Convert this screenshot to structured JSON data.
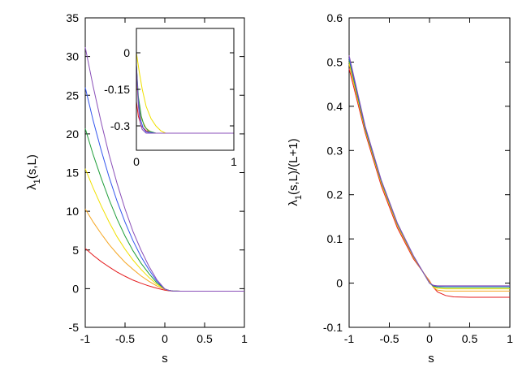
{
  "colors": {
    "red": "#e41a1c",
    "orange": "#f5a623",
    "yellow": "#f0e000",
    "green": "#1f9e3a",
    "blue": "#3355ee",
    "purple": "#8a4fb8"
  },
  "chart_data": [
    {
      "id": "left",
      "type": "line",
      "xlabel": "s",
      "ylabel_main": "λ",
      "ylabel_sub": "1",
      "ylabel_rest": "(s,L)",
      "xlim": [
        -1,
        1
      ],
      "ylim": [
        -5,
        35
      ],
      "xticks": [
        -1,
        -0.5,
        0,
        0.5,
        1
      ],
      "xtick_labels": [
        "-1",
        "-0.5",
        "0",
        "0.5",
        "1"
      ],
      "yticks": [
        -5,
        0,
        5,
        10,
        15,
        20,
        25,
        30,
        35
      ],
      "ytick_labels": [
        "-5",
        "0",
        "5",
        "10",
        "15",
        "20",
        "25",
        "30",
        "35"
      ],
      "series": [
        {
          "color": "red",
          "x": [
            -1,
            -0.9,
            -0.8,
            -0.7,
            -0.6,
            -0.5,
            -0.4,
            -0.3,
            -0.2,
            -0.1,
            0,
            0.05,
            0.1,
            0.2,
            0.4,
            0.6,
            0.8,
            1
          ],
          "y": [
            5.2,
            4.3,
            3.5,
            2.8,
            2.15,
            1.6,
            1.1,
            0.7,
            0.35,
            0.05,
            -0.2,
            -0.28,
            -0.31,
            -0.33,
            -0.33,
            -0.33,
            -0.33,
            -0.33
          ]
        },
        {
          "color": "orange",
          "x": [
            -1,
            -0.9,
            -0.8,
            -0.7,
            -0.6,
            -0.5,
            -0.4,
            -0.3,
            -0.2,
            -0.1,
            0,
            0.05,
            0.1,
            0.2,
            0.4,
            0.6,
            0.8,
            1
          ],
          "y": [
            10.3,
            8.6,
            7.1,
            5.7,
            4.5,
            3.4,
            2.5,
            1.65,
            0.95,
            0.35,
            -0.1,
            -0.24,
            -0.3,
            -0.33,
            -0.33,
            -0.33,
            -0.33,
            -0.33
          ]
        },
        {
          "color": "yellow",
          "x": [
            -1,
            -0.9,
            -0.8,
            -0.7,
            -0.6,
            -0.5,
            -0.4,
            -0.3,
            -0.2,
            -0.1,
            0,
            0.05,
            0.1,
            0.2,
            0.4,
            0.6,
            0.8,
            1
          ],
          "y": [
            15.5,
            13.0,
            10.7,
            8.6,
            6.7,
            5.1,
            3.7,
            2.5,
            1.45,
            0.55,
            -0.05,
            -0.22,
            -0.3,
            -0.33,
            -0.33,
            -0.33,
            -0.33,
            -0.33
          ]
        },
        {
          "color": "green",
          "x": [
            -1,
            -0.9,
            -0.8,
            -0.7,
            -0.6,
            -0.5,
            -0.4,
            -0.3,
            -0.2,
            -0.1,
            0,
            0.05,
            0.1,
            0.2,
            0.4,
            0.6,
            0.8,
            1
          ],
          "y": [
            20.7,
            17.3,
            14.3,
            11.5,
            9.0,
            6.8,
            4.9,
            3.3,
            1.95,
            0.75,
            -0.05,
            -0.22,
            -0.3,
            -0.33,
            -0.33,
            -0.33,
            -0.33,
            -0.33
          ]
        },
        {
          "color": "blue",
          "x": [
            -1,
            -0.9,
            -0.8,
            -0.7,
            -0.6,
            -0.5,
            -0.4,
            -0.3,
            -0.2,
            -0.1,
            0,
            0.05,
            0.1,
            0.2,
            0.4,
            0.6,
            0.8,
            1
          ],
          "y": [
            26.0,
            21.7,
            17.9,
            14.4,
            11.3,
            8.6,
            6.2,
            4.15,
            2.45,
            0.95,
            -0.05,
            -0.22,
            -0.3,
            -0.33,
            -0.33,
            -0.33,
            -0.33,
            -0.33
          ]
        },
        {
          "color": "purple",
          "x": [
            -1,
            -0.9,
            -0.8,
            -0.7,
            -0.6,
            -0.5,
            -0.4,
            -0.3,
            -0.2,
            -0.1,
            0,
            0.05,
            0.1,
            0.2,
            0.4,
            0.6,
            0.8,
            1
          ],
          "y": [
            31.2,
            26.1,
            21.5,
            17.3,
            13.6,
            10.3,
            7.4,
            5.0,
            2.9,
            1.15,
            -0.05,
            -0.22,
            -0.3,
            -0.33,
            -0.33,
            -0.33,
            -0.33,
            -0.33
          ]
        }
      ]
    },
    {
      "id": "inset",
      "type": "line",
      "xlabel": "",
      "xlim": [
        0,
        1
      ],
      "ylim": [
        -0.4,
        0.1
      ],
      "xticks": [
        0,
        1
      ],
      "xtick_labels": [
        "0",
        "1"
      ],
      "yticks": [
        0,
        -0.15,
        -0.3
      ],
      "ytick_labels": [
        "0",
        "-0.15",
        "-0.3"
      ],
      "series": [
        {
          "color": "red",
          "x": [
            0,
            0.02,
            0.05,
            0.1,
            0.15,
            0.2,
            0.3,
            0.5,
            1
          ],
          "y": [
            -0.2,
            -0.26,
            -0.3,
            -0.32,
            -0.33,
            -0.33,
            -0.33,
            -0.33,
            -0.33
          ]
        },
        {
          "color": "orange",
          "x": [
            0,
            0.02,
            0.05,
            0.1,
            0.15,
            0.2,
            0.3,
            0.5,
            1
          ],
          "y": [
            -0.1,
            -0.2,
            -0.27,
            -0.31,
            -0.325,
            -0.33,
            -0.33,
            -0.33,
            -0.33
          ]
        },
        {
          "color": "yellow",
          "x": [
            0,
            0.03,
            0.06,
            0.1,
            0.15,
            0.2,
            0.25,
            0.3,
            0.5,
            1
          ],
          "y": [
            0.0,
            -0.08,
            -0.15,
            -0.22,
            -0.27,
            -0.3,
            -0.32,
            -0.33,
            -0.33,
            -0.33
          ]
        },
        {
          "color": "green",
          "x": [
            0,
            0.02,
            0.05,
            0.08,
            0.12,
            0.2,
            0.3,
            0.5,
            1
          ],
          "y": [
            -0.05,
            -0.18,
            -0.26,
            -0.3,
            -0.32,
            -0.33,
            -0.33,
            -0.33,
            -0.33
          ]
        },
        {
          "color": "blue",
          "x": [
            0,
            0.02,
            0.04,
            0.07,
            0.1,
            0.2,
            0.3,
            0.5,
            1
          ],
          "y": [
            -0.05,
            -0.2,
            -0.27,
            -0.31,
            -0.325,
            -0.33,
            -0.33,
            -0.33,
            -0.33
          ]
        },
        {
          "color": "purple",
          "x": [
            0,
            0.02,
            0.04,
            0.06,
            0.1,
            0.2,
            0.3,
            0.5,
            1
          ],
          "y": [
            -0.05,
            -0.22,
            -0.29,
            -0.315,
            -0.33,
            -0.33,
            -0.33,
            -0.33,
            -0.33
          ]
        }
      ]
    },
    {
      "id": "right",
      "type": "line",
      "xlabel": "s",
      "ylabel_main": "λ",
      "ylabel_sub": "1",
      "ylabel_rest": "(s,L)/(L+1)",
      "xlim": [
        -1,
        1
      ],
      "ylim": [
        -0.1,
        0.6
      ],
      "xticks": [
        -1,
        -0.5,
        0,
        0.5,
        1
      ],
      "xtick_labels": [
        "-1",
        "-0.5",
        "0",
        "0.5",
        "1"
      ],
      "yticks": [
        -0.1,
        0,
        0.1,
        0.2,
        0.3,
        0.4,
        0.5,
        0.6
      ],
      "ytick_labels": [
        "-0.1",
        "0",
        "0.1",
        "0.2",
        "0.3",
        "0.4",
        "0.5",
        "0.6"
      ],
      "series": [
        {
          "color": "red",
          "x": [
            -1,
            -0.8,
            -0.6,
            -0.4,
            -0.2,
            0,
            0.05,
            0.1,
            0.2,
            0.3,
            0.5,
            1
          ],
          "y": [
            0.485,
            0.34,
            0.22,
            0.125,
            0.055,
            0.005,
            -0.01,
            -0.02,
            -0.028,
            -0.031,
            -0.032,
            -0.032
          ]
        },
        {
          "color": "orange",
          "x": [
            -1,
            -0.8,
            -0.6,
            -0.4,
            -0.2,
            0,
            0.05,
            0.1,
            0.2,
            0.3,
            0.5,
            1
          ],
          "y": [
            0.495,
            0.345,
            0.225,
            0.13,
            0.058,
            0.003,
            -0.01,
            -0.016,
            -0.018,
            -0.018,
            -0.018,
            -0.018
          ]
        },
        {
          "color": "yellow",
          "x": [
            -1,
            -0.8,
            -0.6,
            -0.4,
            -0.2,
            0,
            0.05,
            0.1,
            0.2,
            0.3,
            0.5,
            1
          ],
          "y": [
            0.5,
            0.348,
            0.228,
            0.132,
            0.06,
            0.002,
            -0.008,
            -0.012,
            -0.013,
            -0.013,
            -0.013,
            -0.013
          ]
        },
        {
          "color": "green",
          "x": [
            -1,
            -0.8,
            -0.6,
            -0.4,
            -0.2,
            0,
            0.05,
            0.1,
            0.2,
            0.3,
            0.5,
            1
          ],
          "y": [
            0.505,
            0.35,
            0.23,
            0.134,
            0.061,
            0.0,
            -0.007,
            -0.009,
            -0.01,
            -0.01,
            -0.01,
            -0.01
          ]
        },
        {
          "color": "blue",
          "x": [
            -1,
            -0.8,
            -0.6,
            -0.4,
            -0.2,
            0,
            0.05,
            0.1,
            0.2,
            0.3,
            0.5,
            1
          ],
          "y": [
            0.51,
            0.353,
            0.232,
            0.135,
            0.062,
            0.0,
            -0.006,
            -0.007,
            -0.007,
            -0.007,
            -0.007,
            -0.007
          ]
        },
        {
          "color": "purple",
          "x": [
            -1,
            -0.8,
            -0.6,
            -0.4,
            -0.2,
            0,
            0.05,
            0.1,
            0.2,
            0.3,
            0.5,
            1
          ],
          "y": [
            0.515,
            0.355,
            0.233,
            0.136,
            0.062,
            0.0,
            -0.005,
            -0.006,
            -0.006,
            -0.006,
            -0.006,
            -0.006
          ]
        }
      ]
    }
  ]
}
